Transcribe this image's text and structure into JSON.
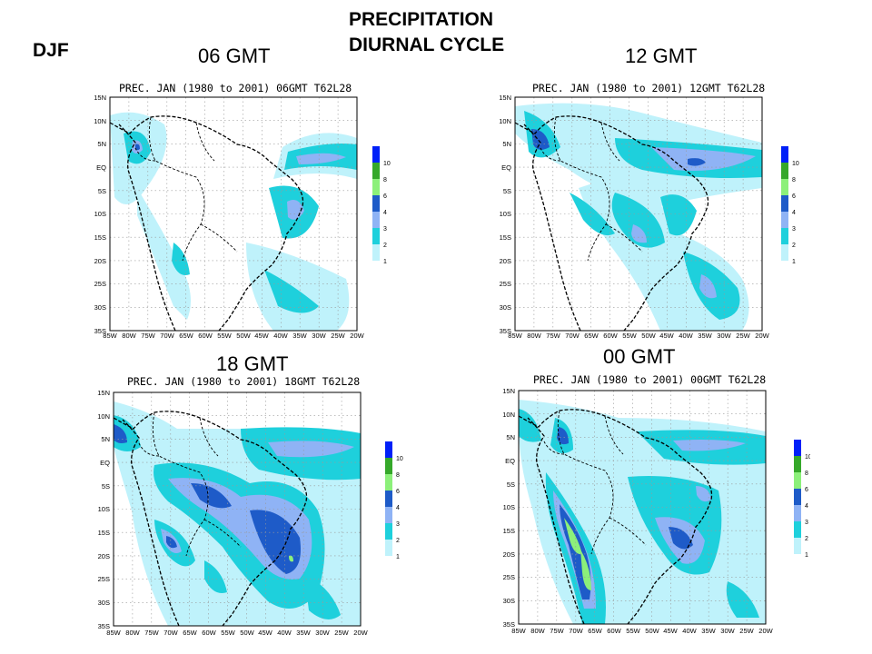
{
  "header": {
    "title_line1": "PRECIPITATION",
    "title_line2": "DIURNAL CYCLE",
    "season": "DJF"
  },
  "panels": [
    {
      "id": "p06",
      "time_label": "06 GMT",
      "title": "PREC. JAN (1980 to 2001) 06GMT T62L28"
    },
    {
      "id": "p12",
      "time_label": "12 GMT",
      "title": "PREC. JAN (1980 to 2001) 12GMT T62L28"
    },
    {
      "id": "p18",
      "time_label": "18 GMT",
      "title": "PREC. JAN (1980 to 2001) 18GMT T62L28"
    },
    {
      "id": "p00",
      "time_label": "00 GMT",
      "title": "PREC. JAN (1980 to 2001) 00GMT T62L28"
    }
  ],
  "axes": {
    "lat_labels": [
      "15N",
      "10N",
      "5N",
      "EQ",
      "5S",
      "10S",
      "15S",
      "20S",
      "25S",
      "30S",
      "35S"
    ],
    "lon_labels": [
      "85W",
      "80W",
      "75W",
      "70W",
      "65W",
      "60W",
      "55W",
      "50W",
      "45W",
      "40W",
      "35W",
      "30W",
      "25W",
      "20W"
    ]
  },
  "legend": {
    "levels": [
      "1",
      "2",
      "3",
      "4",
      "6",
      "8",
      "10"
    ],
    "colors": [
      "#ffffff",
      "#bff2fb",
      "#1ed0dc",
      "#8fb3f5",
      "#1e5bc8",
      "#35a82a",
      "#8cf07a",
      "#0020f8"
    ]
  }
}
